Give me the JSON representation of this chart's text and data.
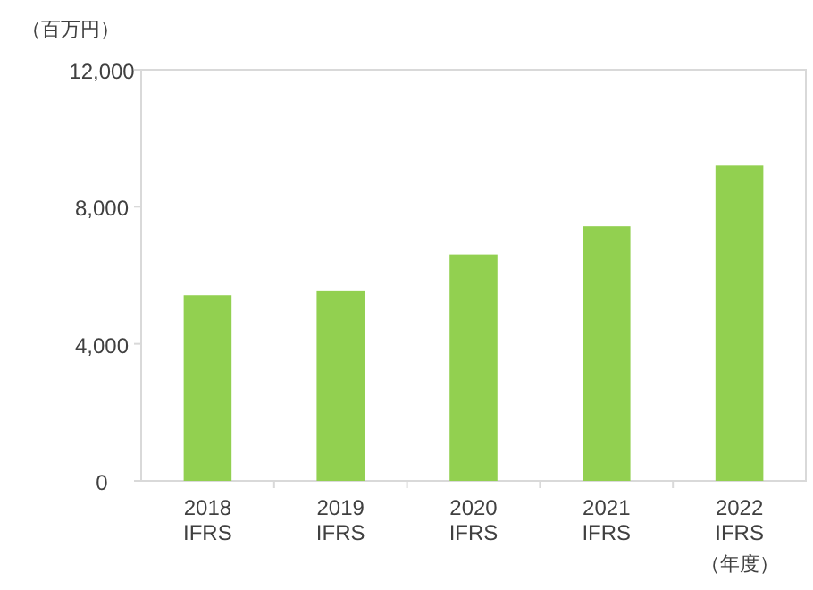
{
  "chart_data": {
    "type": "bar",
    "ylabel": "（百万円）",
    "xlabel": "（年度）",
    "categories": [
      "2018\nIFRS",
      "2019\nIFRS",
      "2020\nIFRS",
      "2021\nIFRS",
      "2022\nIFRS"
    ],
    "values": [
      5420,
      5560,
      6610,
      7430,
      9200
    ],
    "color": "#92d050",
    "ylim": [
      0,
      12000
    ],
    "yticks": [
      0,
      {
        "value": 4000,
        "label": "4,000"
      },
      {
        "value": 8000,
        "label": "8,000"
      },
      {
        "value": 12000,
        "label": "12,000"
      }
    ],
    "grid": false
  }
}
